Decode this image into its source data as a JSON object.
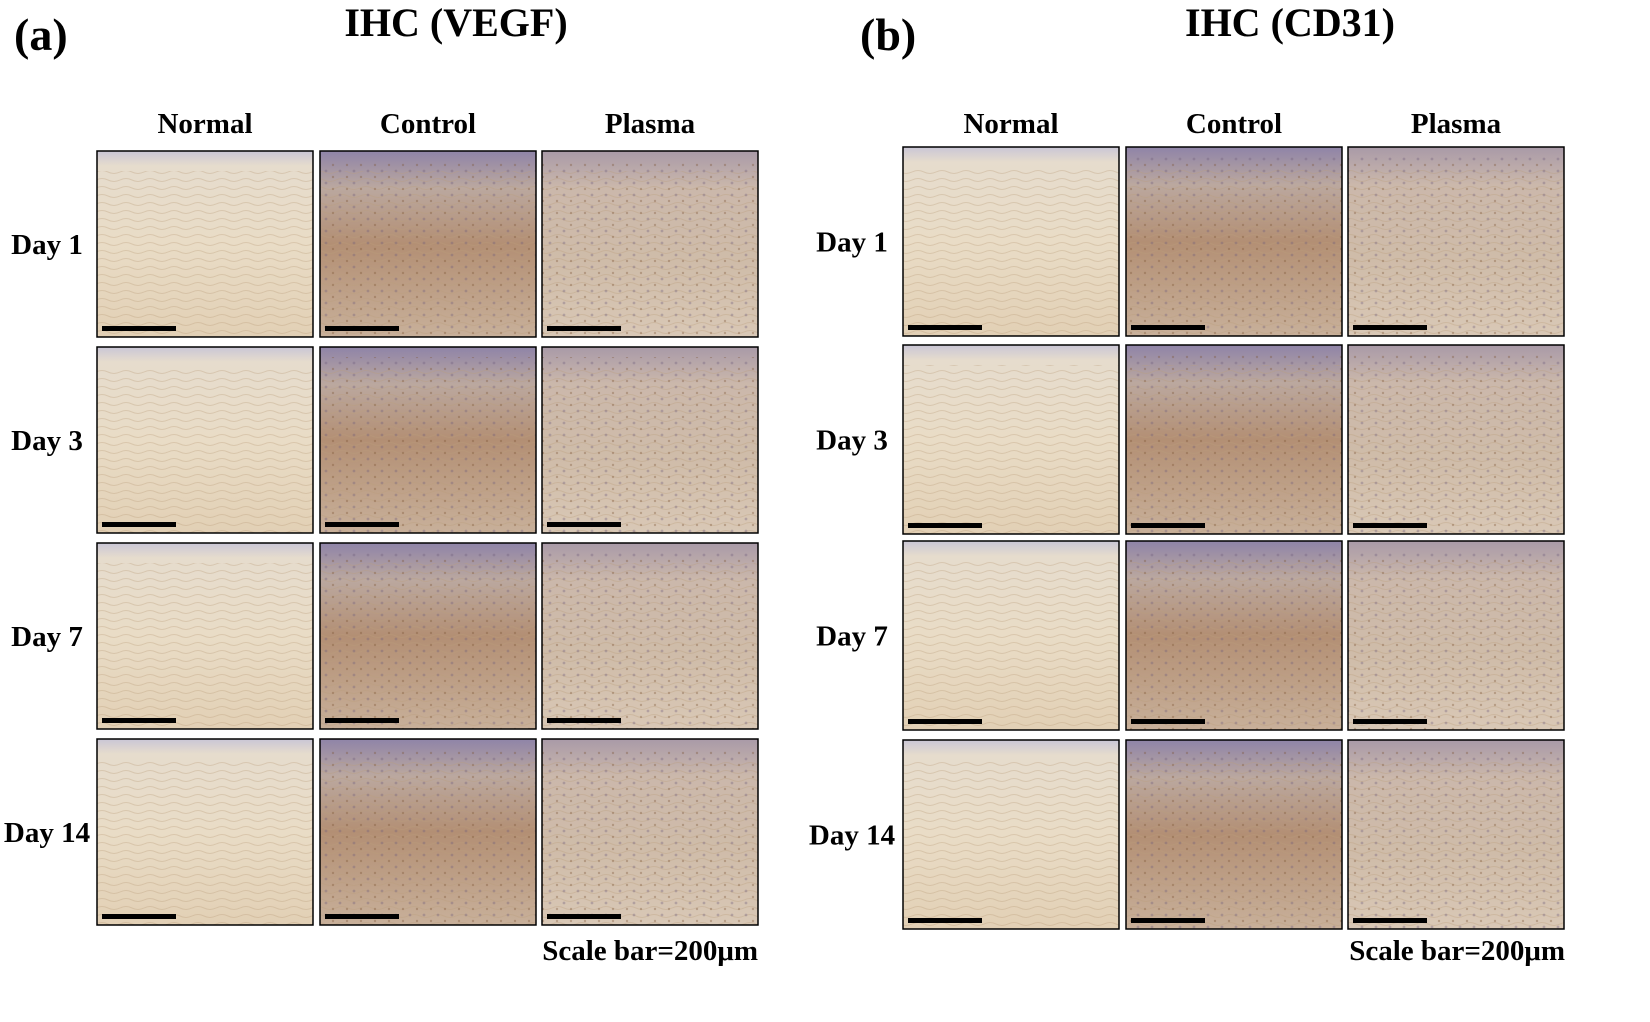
{
  "panels": [
    {
      "label": "(a)",
      "title": "IHC (VEGF)",
      "columns": [
        "Normal",
        "Control",
        "Plasma"
      ],
      "rows": [
        "Day 1",
        "Day 3",
        "Day 7",
        "Day 14"
      ],
      "scale_bar": "Scale bar=200μm"
    },
    {
      "label": "(b)",
      "title": "IHC (CD31)",
      "columns": [
        "Normal",
        "Control",
        "Plasma"
      ],
      "rows": [
        "Day 1",
        "Day 3",
        "Day 7",
        "Day 14"
      ],
      "scale_bar": "Scale bar=200μm"
    }
  ]
}
